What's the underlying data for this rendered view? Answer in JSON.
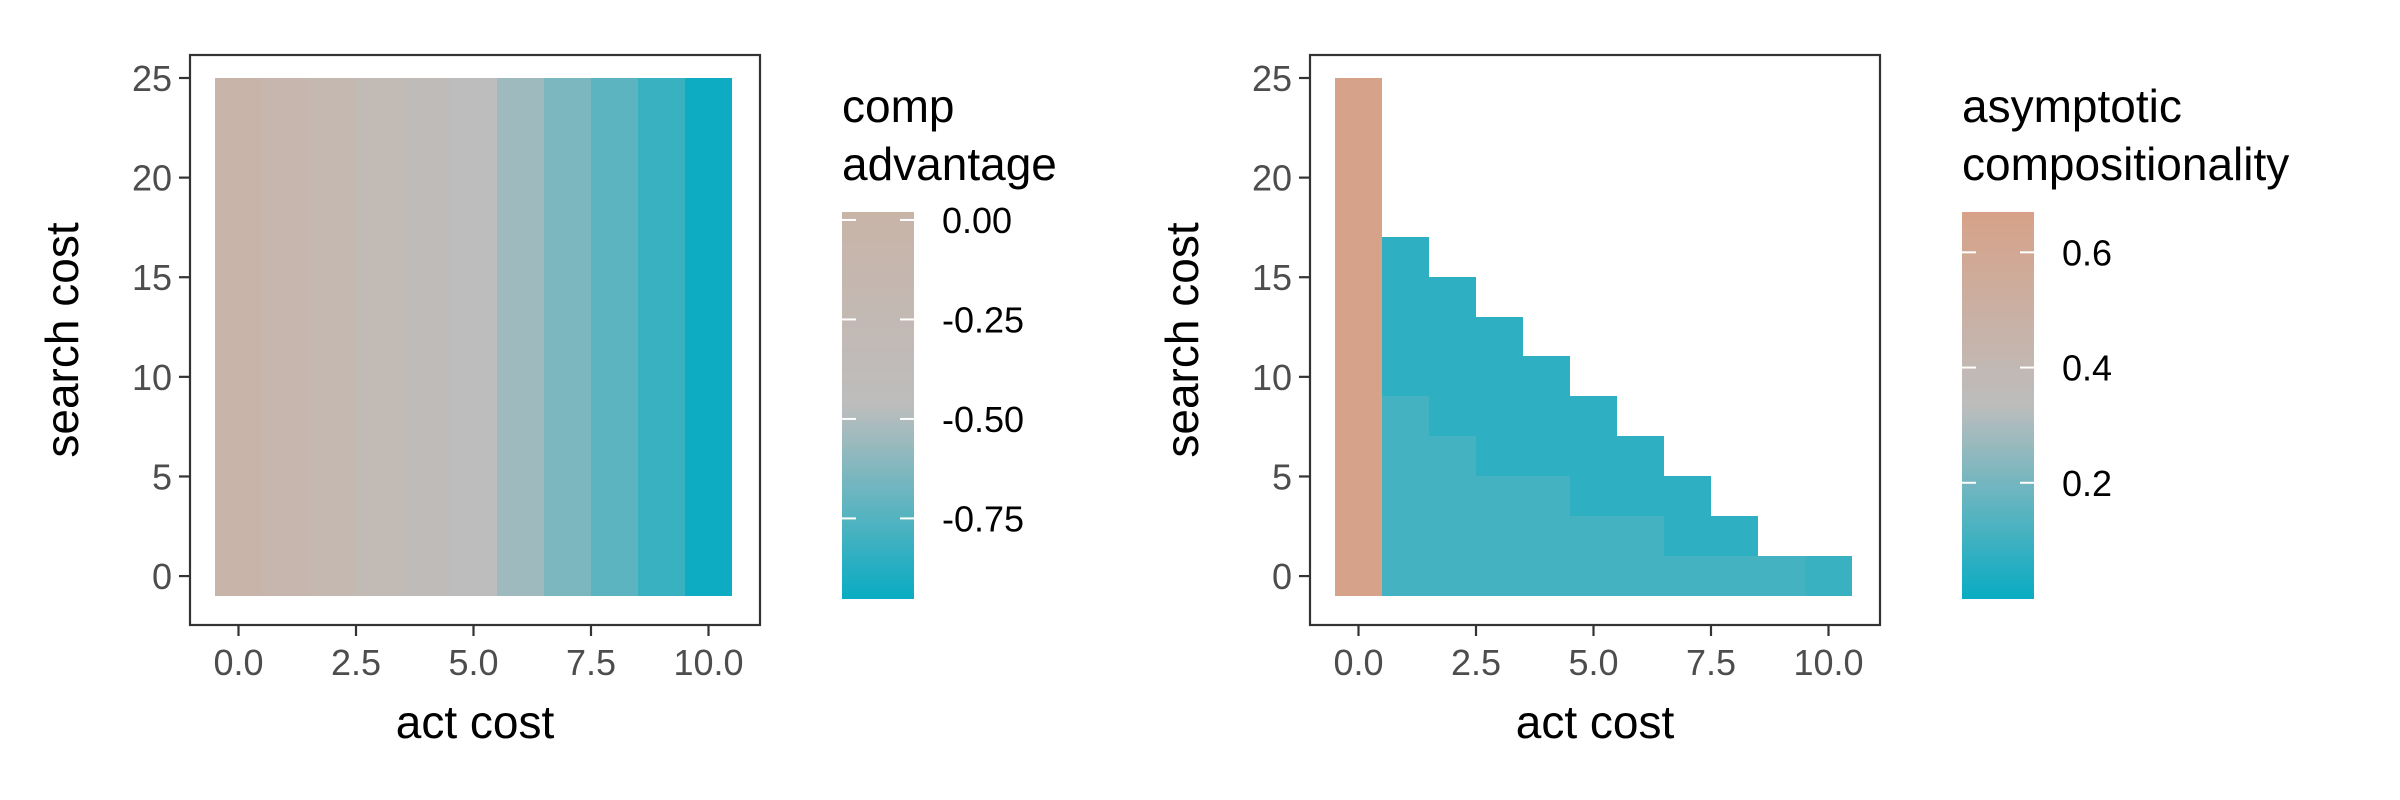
{
  "chart_data": [
    {
      "type": "heatmap",
      "xlabel": "act cost",
      "ylabel": "search cost",
      "x_ticks": [
        "0.0",
        "2.5",
        "5.0",
        "7.5",
        "10.0"
      ],
      "y_ticks": [
        "0",
        "5",
        "10",
        "15",
        "20",
        "25"
      ],
      "xlim": [
        -0.5,
        10.5
      ],
      "ylim": [
        -1,
        25
      ],
      "x_values": [
        0,
        1,
        2,
        3,
        4,
        5,
        6,
        7,
        8,
        9,
        10
      ],
      "legend_title": [
        "comp",
        "advantage"
      ],
      "legend_position": "right",
      "legend_labels": [
        "0.00",
        "-0.25",
        "-0.50",
        "-0.75"
      ],
      "legend_break_values": [
        0.0,
        -0.25,
        -0.5,
        -0.75
      ],
      "color_range": [
        -0.95,
        0.02
      ],
      "colors": {
        "low": "#0aacc3",
        "mid": "#bdbdbd",
        "high": "#c9b4a8"
      },
      "columns": [
        {
          "x": 0,
          "value": 0.0
        },
        {
          "x": 1,
          "value": -0.1
        },
        {
          "x": 2,
          "value": -0.19
        },
        {
          "x": 3,
          "value": -0.28
        },
        {
          "x": 4,
          "value": -0.37
        },
        {
          "x": 5,
          "value": -0.46
        },
        {
          "x": 6,
          "value": -0.55
        },
        {
          "x": 7,
          "value": -0.64
        },
        {
          "x": 8,
          "value": -0.73
        },
        {
          "x": 9,
          "value": -0.82
        },
        {
          "x": 10,
          "value": -0.94
        }
      ]
    },
    {
      "type": "heatmap",
      "xlabel": "act cost",
      "ylabel": "search cost",
      "x_ticks": [
        "0.0",
        "2.5",
        "5.0",
        "7.5",
        "10.0"
      ],
      "y_ticks": [
        "0",
        "5",
        "10",
        "15",
        "20",
        "25"
      ],
      "xlim": [
        -0.5,
        10.5
      ],
      "ylim": [
        -1,
        25
      ],
      "x_values": [
        0,
        1,
        2,
        3,
        4,
        5,
        6,
        7,
        8,
        9,
        10
      ],
      "legend_title": [
        "asymptotic",
        "compositionality"
      ],
      "legend_position": "right",
      "legend_labels": [
        "0.6",
        "0.4",
        "0.2"
      ],
      "legend_break_values": [
        0.6,
        0.4,
        0.2
      ],
      "color_range": [
        0.0,
        0.67
      ],
      "colors": {
        "low": "#0aacc3",
        "mid": "#bdbdbd",
        "high": "#d7a288"
      },
      "cells": [
        {
          "x": 0,
          "y_from": -1,
          "y_to": 25,
          "value": 0.66
        },
        {
          "x": 1,
          "y_from": 9,
          "y_to": 17,
          "value": 0.07
        },
        {
          "x": 1,
          "y_from": -1,
          "y_to": 9,
          "value": 0.11
        },
        {
          "x": 2,
          "y_from": 7,
          "y_to": 15,
          "value": 0.07
        },
        {
          "x": 2,
          "y_from": -1,
          "y_to": 7,
          "value": 0.11
        },
        {
          "x": 3,
          "y_from": 5,
          "y_to": 13,
          "value": 0.07
        },
        {
          "x": 3,
          "y_from": -1,
          "y_to": 5,
          "value": 0.11
        },
        {
          "x": 4,
          "y_from": 5,
          "y_to": 11,
          "value": 0.07
        },
        {
          "x": 4,
          "y_from": -1,
          "y_to": 5,
          "value": 0.11
        },
        {
          "x": 5,
          "y_from": 3,
          "y_to": 9,
          "value": 0.07
        },
        {
          "x": 5,
          "y_from": -1,
          "y_to": 3,
          "value": 0.11
        },
        {
          "x": 6,
          "y_from": 3,
          "y_to": 7,
          "value": 0.07
        },
        {
          "x": 6,
          "y_from": -1,
          "y_to": 3,
          "value": 0.11
        },
        {
          "x": 7,
          "y_from": 1,
          "y_to": 5,
          "value": 0.07
        },
        {
          "x": 7,
          "y_from": -1,
          "y_to": 1,
          "value": 0.11
        },
        {
          "x": 8,
          "y_from": 1,
          "y_to": 3,
          "value": 0.07
        },
        {
          "x": 8,
          "y_from": -1,
          "y_to": 1,
          "value": 0.11
        },
        {
          "x": 9,
          "y_from": -1,
          "y_to": 1,
          "value": 0.11
        },
        {
          "x": 10,
          "y_from": -1,
          "y_to": 1,
          "value": 0.09
        }
      ]
    }
  ]
}
